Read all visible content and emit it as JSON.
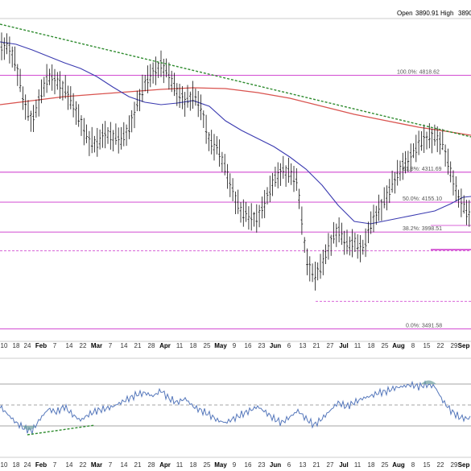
{
  "header": {
    "open_label": "Open",
    "open_value": "3890.91",
    "high_label": "High",
    "high_value": "3890"
  },
  "chart_data": [
    {
      "type": "ohlc",
      "series": [
        {
          "name": "Price",
          "kind": "ohlc"
        },
        {
          "name": "50-day MA",
          "kind": "line",
          "color": "#3a3ab0"
        },
        {
          "name": "200-day MA",
          "kind": "line",
          "color": "#d9534f"
        }
      ],
      "x_ticks": [
        {
          "label": "10",
          "bold": false
        },
        {
          "label": "18",
          "bold": false
        },
        {
          "label": "24",
          "bold": false
        },
        {
          "label": "Feb",
          "bold": true
        },
        {
          "label": "7",
          "bold": false
        },
        {
          "label": "14",
          "bold": false
        },
        {
          "label": "22",
          "bold": false
        },
        {
          "label": "Mar",
          "bold": true
        },
        {
          "label": "7",
          "bold": false
        },
        {
          "label": "14",
          "bold": false
        },
        {
          "label": "21",
          "bold": false
        },
        {
          "label": "28",
          "bold": false
        },
        {
          "label": "Apr",
          "bold": true
        },
        {
          "label": "11",
          "bold": false
        },
        {
          "label": "18",
          "bold": false
        },
        {
          "label": "25",
          "bold": false
        },
        {
          "label": "May",
          "bold": true
        },
        {
          "label": "9",
          "bold": false
        },
        {
          "label": "16",
          "bold": false
        },
        {
          "label": "23",
          "bold": false
        },
        {
          "label": "Jun",
          "bold": true
        },
        {
          "label": "6",
          "bold": false
        },
        {
          "label": "13",
          "bold": false
        },
        {
          "label": "21",
          "bold": false
        },
        {
          "label": "27",
          "bold": false
        },
        {
          "label": "Jul",
          "bold": true
        },
        {
          "label": "11",
          "bold": false
        },
        {
          "label": "18",
          "bold": false
        },
        {
          "label": "25",
          "bold": false
        },
        {
          "label": "Aug",
          "bold": true
        },
        {
          "label": "8",
          "bold": false
        },
        {
          "label": "15",
          "bold": false
        },
        {
          "label": "22",
          "bold": false
        },
        {
          "label": "29",
          "bold": false
        },
        {
          "label": "Sep",
          "bold": true
        }
      ],
      "fibonacci_levels": [
        {
          "label": "100.0%: 4818.62",
          "value": 4818.62,
          "style": "solid"
        },
        {
          "label": "61.8%: 4311.69",
          "value": 4311.69,
          "style": "solid"
        },
        {
          "label": "50.0%: 4155.10",
          "value": 4155.1,
          "style": "solid"
        },
        {
          "label": "38.2%: 3998.51",
          "value": 3998.51,
          "style": "solid"
        },
        {
          "label": "0.0%: 3491.58",
          "value": 3491.58,
          "style": "solid"
        }
      ],
      "support_levels": [
        3900,
        3636
      ],
      "trendline": {
        "from": "Jan",
        "to": "Sep",
        "style": "dashed",
        "color": "#2e8b2e"
      }
    },
    {
      "type": "line",
      "panel": "oscillator",
      "x_ticks": [
        "10",
        "18",
        "24",
        "Feb",
        "7",
        "14",
        "22",
        "Mar",
        "7",
        "14",
        "21",
        "28",
        "Apr",
        "11",
        "18",
        "25",
        "May",
        "9",
        "16",
        "23",
        "Jun",
        "6",
        "13",
        "21",
        "27",
        "Jul",
        "11",
        "18",
        "25",
        "Aug",
        "8",
        "15",
        "22",
        "29",
        "Sep"
      ],
      "reference_lines": [
        "upper",
        "middle",
        "lower"
      ],
      "trendline": {
        "from": "Jan",
        "to": "Mar",
        "style": "dashed",
        "color": "#2e8b2e"
      }
    }
  ]
}
